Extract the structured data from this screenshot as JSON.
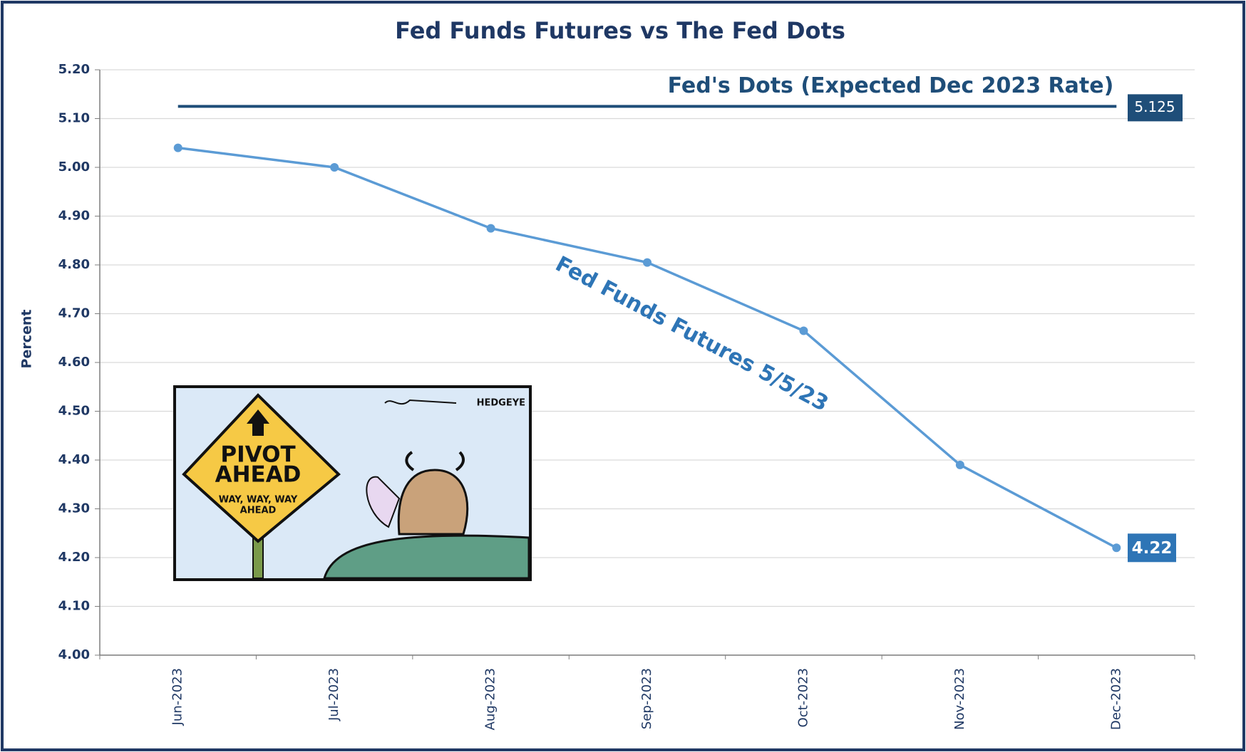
{
  "chart_data": {
    "type": "line",
    "title": "Fed Funds Futures vs The Fed Dots",
    "y_label": "Percent",
    "categories": [
      "Jun-2023",
      "Jul-2023",
      "Aug-2023",
      "Sep-2023",
      "Oct-2023",
      "Nov-2023",
      "Dec-2023"
    ],
    "series": [
      {
        "name": "Fed Funds Futures 5/5/23",
        "color": "#5b9bd5",
        "values": [
          5.04,
          5.0,
          4.875,
          4.805,
          4.665,
          4.39,
          4.22
        ]
      }
    ],
    "reference_line": {
      "name": "Fed's Dots (Expected Dec 2023 Rate)",
      "value": 5.125,
      "color": "#1f4e79"
    },
    "ylim": [
      4.0,
      5.2
    ],
    "yticks": [
      {
        "value": 4.0,
        "label": "4.00"
      },
      {
        "value": 4.1,
        "label": "4.10"
      },
      {
        "value": 4.2,
        "label": "4.20"
      },
      {
        "value": 4.3,
        "label": "4.30"
      },
      {
        "value": 4.4,
        "label": "4.40"
      },
      {
        "value": 4.5,
        "label": "4.50"
      },
      {
        "value": 4.6,
        "label": "4.60"
      },
      {
        "value": 4.7,
        "label": "4.70"
      },
      {
        "value": 4.8,
        "label": "4.80"
      },
      {
        "value": 4.9,
        "label": "4.90"
      },
      {
        "value": 5.0,
        "label": "5.00"
      },
      {
        "value": 5.1,
        "label": "5.10"
      },
      {
        "value": 5.2,
        "label": "5.20"
      }
    ],
    "grid": true
  },
  "cartoon": {
    "sign": [
      "PIVOT",
      "AHEAD"
    ],
    "sign_note": [
      "WAY, WAY, WAY",
      "AHEAD"
    ],
    "credit": "HEDGEYE"
  }
}
